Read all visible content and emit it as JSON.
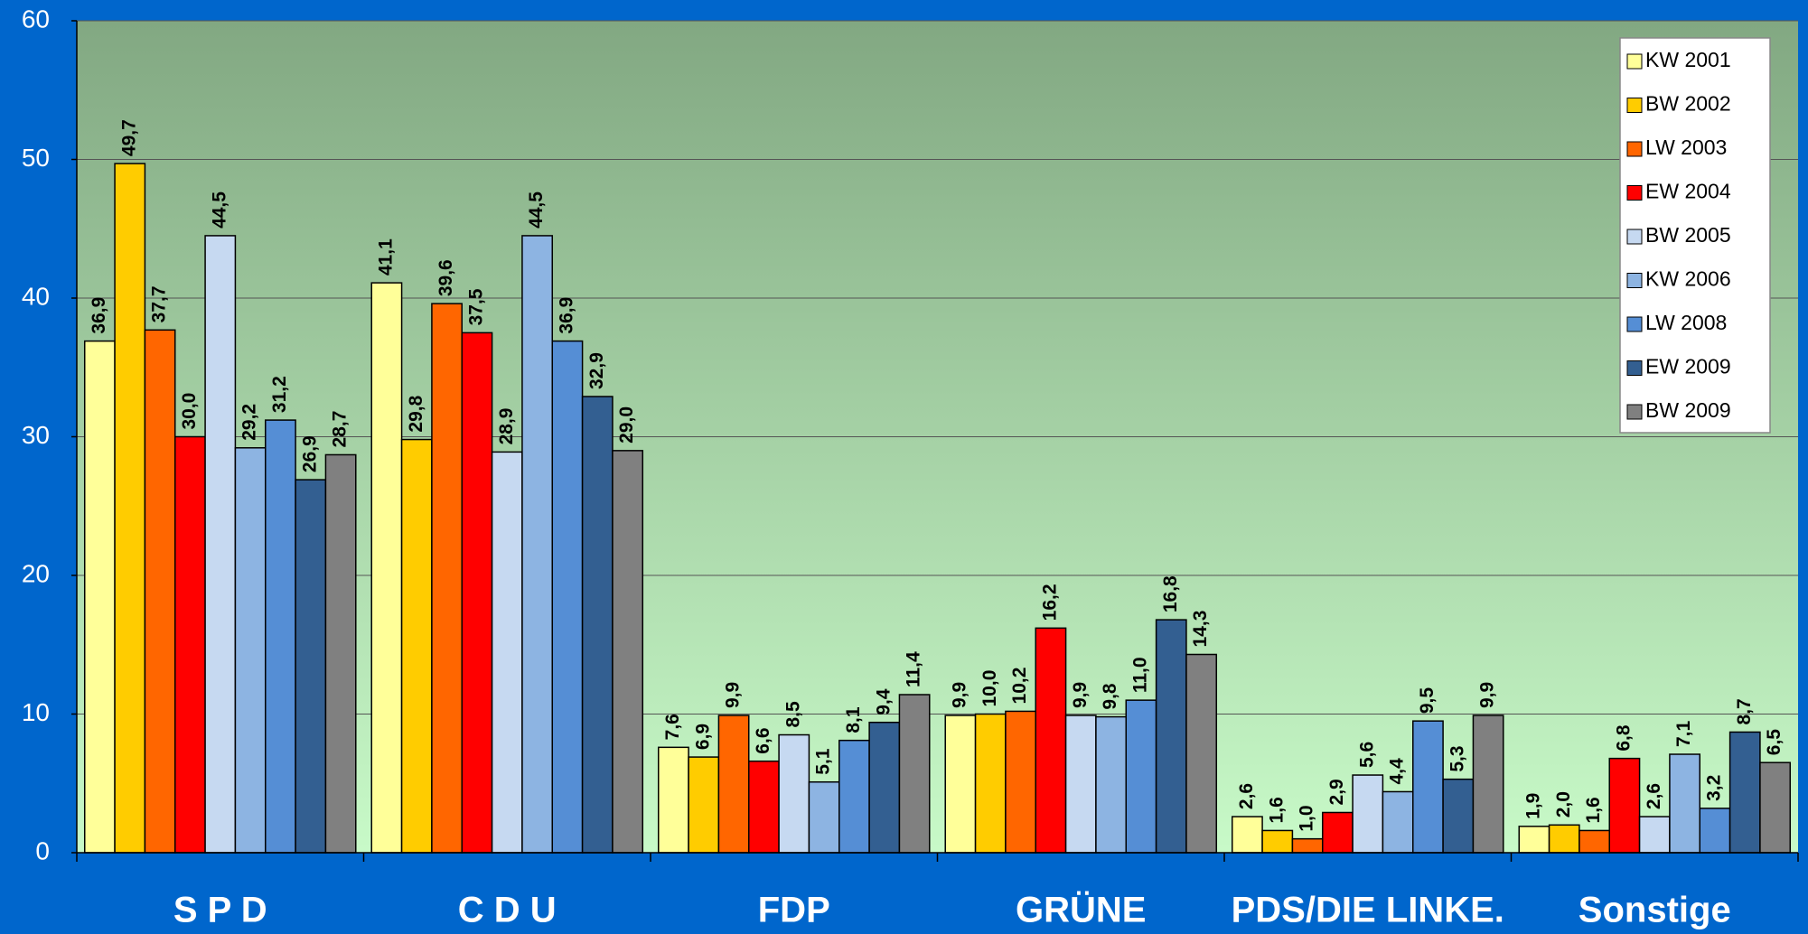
{
  "chart_data": {
    "type": "bar",
    "categories": [
      "S P D",
      "C D U",
      "FDP",
      "GRÜNE",
      "PDS/DIE LINKE.",
      "Sonstige"
    ],
    "series": [
      {
        "name": "KW 2001",
        "color": "#ffff99",
        "values": [
          36.9,
          41.1,
          7.6,
          9.9,
          2.6,
          1.9
        ],
        "value_labels": [
          "36,9",
          "41,1",
          "7,6",
          "9,9",
          "2,6",
          "1,9"
        ]
      },
      {
        "name": "BW 2002",
        "color": "#ffcc00",
        "values": [
          49.7,
          29.8,
          6.9,
          10.0,
          1.6,
          2.0
        ],
        "value_labels": [
          "49,7",
          "29,8",
          "6,9",
          "10,0",
          "1,6",
          "2,0"
        ]
      },
      {
        "name": "LW 2003",
        "color": "#ff6600",
        "values": [
          37.7,
          39.6,
          9.9,
          10.2,
          1.0,
          1.6
        ],
        "value_labels": [
          "37,7",
          "39,6",
          "9,9",
          "10,2",
          "1,0",
          "1,6"
        ]
      },
      {
        "name": "EW 2004",
        "color": "#ff0000",
        "values": [
          30.0,
          37.5,
          6.6,
          16.2,
          2.9,
          6.8
        ],
        "value_labels": [
          "30,0",
          "37,5",
          "6,6",
          "16,2",
          "2,9",
          "6,8"
        ]
      },
      {
        "name": "BW 2005",
        "color": "#c6d9f1",
        "values": [
          44.5,
          28.9,
          8.5,
          9.9,
          5.6,
          2.6
        ],
        "value_labels": [
          "44,5",
          "28,9",
          "8,5",
          "9,9",
          "5,6",
          "2,6"
        ]
      },
      {
        "name": "KW 2006",
        "color": "#8db4e2",
        "values": [
          29.2,
          44.5,
          5.1,
          9.8,
          4.4,
          7.1
        ],
        "value_labels": [
          "29,2",
          "44,5",
          "5,1",
          "9,8",
          "4,4",
          "7,1"
        ]
      },
      {
        "name": "LW 2008",
        "color": "#558ed5",
        "values": [
          31.2,
          36.9,
          8.1,
          11.0,
          9.5,
          3.2
        ],
        "value_labels": [
          "31,2",
          "36,9",
          "8,1",
          "11,0",
          "9,5",
          "3,2"
        ]
      },
      {
        "name": "EW 2009",
        "color": "#335f91",
        "values": [
          26.9,
          32.9,
          9.4,
          16.8,
          5.3,
          8.7
        ],
        "value_labels": [
          "26,9",
          "32,9",
          "9,4",
          "16,8",
          "5,3",
          "8,7"
        ]
      },
      {
        "name": "BW 2009",
        "color": "#808080",
        "values": [
          28.7,
          29.0,
          11.4,
          14.3,
          9.9,
          6.5
        ],
        "value_labels": [
          "28,7",
          "29,0",
          "11,4",
          "14,3",
          "9,9",
          "6,5"
        ]
      }
    ],
    "ylim": [
      0,
      60
    ],
    "yticks": [
      0,
      10,
      20,
      30,
      40,
      50,
      60
    ],
    "grid": true,
    "legend": "top-right"
  }
}
